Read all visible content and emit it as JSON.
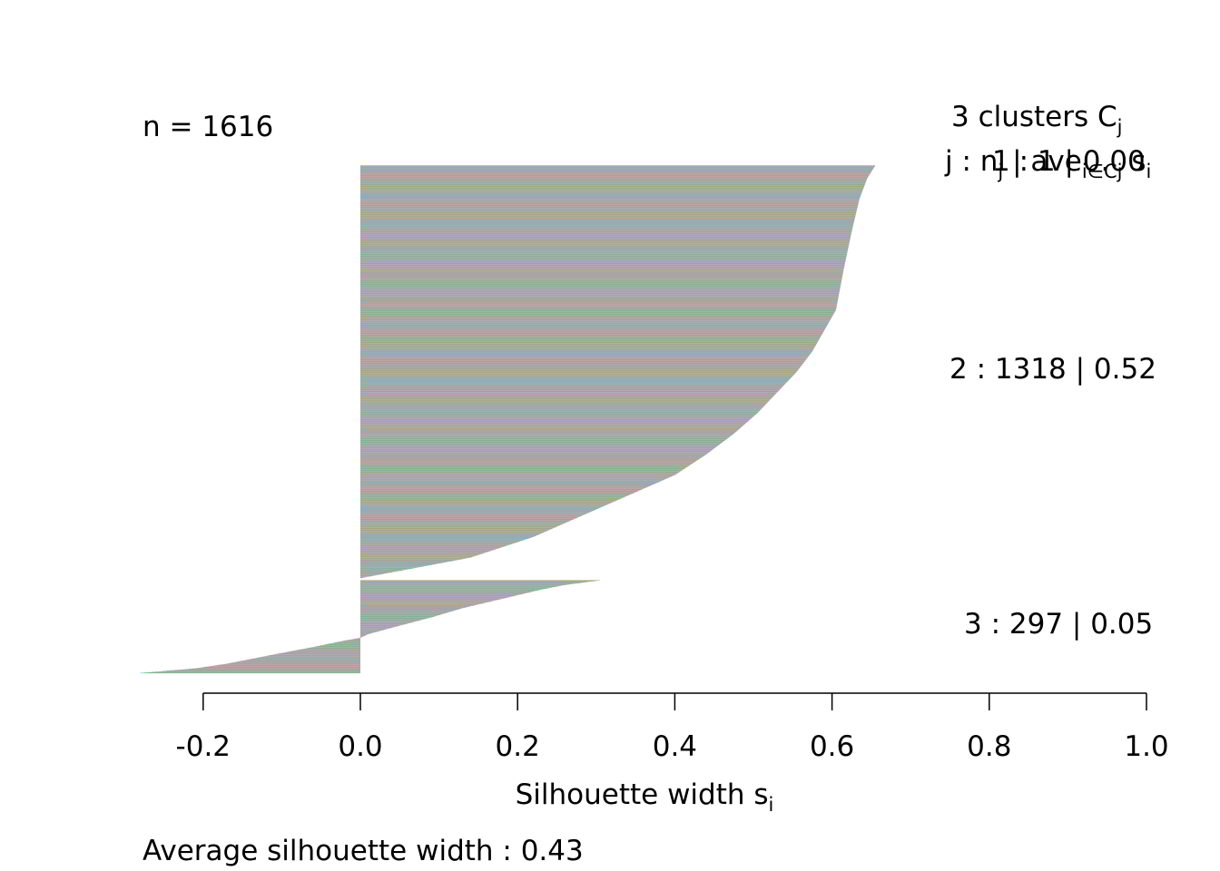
{
  "chart_data": {
    "type": "bar",
    "orientation": "horizontal",
    "plot_kind": "silhouette",
    "n_label": "n = 1616",
    "header_clusters": "3  clusters  C",
    "header_clusters_sub": "j",
    "header_row_j": "j :  n",
    "header_row_j_sub": "j",
    "header_row_ave": " |  ave",
    "header_row_ave_sub": "i∈Cj",
    "header_row_s": " s",
    "header_row_s_sub": "i",
    "xlabel": "Silhouette width s",
    "xlabel_sub": "i",
    "footer": "Average silhouette width :  0.43",
    "xlim": [
      -0.2,
      1.0
    ],
    "xticks": [
      {
        "value": -0.2,
        "label": "-0.2"
      },
      {
        "value": 0.0,
        "label": "0.0"
      },
      {
        "value": 0.2,
        "label": "0.2"
      },
      {
        "value": 0.4,
        "label": "0.4"
      },
      {
        "value": 0.6,
        "label": "0.6"
      },
      {
        "value": 0.8,
        "label": "0.8"
      },
      {
        "value": 1.0,
        "label": "1.0"
      }
    ],
    "clusters": [
      {
        "id": 1,
        "size": 1,
        "ave": 0.0,
        "label": "1 :   1  |  0.00",
        "profile": [
          [
            0,
            0.0
          ],
          [
            1,
            0.0
          ]
        ]
      },
      {
        "id": 2,
        "size": 1318,
        "ave": 0.52,
        "label": "2 :   1318  |  0.52",
        "profile": [
          [
            0,
            0.655
          ],
          [
            0.03,
            0.645
          ],
          [
            0.08,
            0.635
          ],
          [
            0.16,
            0.625
          ],
          [
            0.25,
            0.615
          ],
          [
            0.35,
            0.605
          ],
          [
            0.4,
            0.59
          ],
          [
            0.45,
            0.575
          ],
          [
            0.5,
            0.555
          ],
          [
            0.55,
            0.53
          ],
          [
            0.6,
            0.505
          ],
          [
            0.65,
            0.475
          ],
          [
            0.7,
            0.44
          ],
          [
            0.75,
            0.4
          ],
          [
            0.8,
            0.34
          ],
          [
            0.85,
            0.28
          ],
          [
            0.9,
            0.22
          ],
          [
            0.95,
            0.14
          ],
          [
            1.0,
            0.0
          ]
        ]
      },
      {
        "id": 3,
        "size": 297,
        "ave": 0.05,
        "label": "3 :   297  |  0.05",
        "profile": [
          [
            0,
            0.305
          ],
          [
            0.05,
            0.26
          ],
          [
            0.1,
            0.23
          ],
          [
            0.2,
            0.18
          ],
          [
            0.3,
            0.13
          ],
          [
            0.4,
            0.09
          ],
          [
            0.5,
            0.045
          ],
          [
            0.58,
            0.01
          ],
          [
            0.62,
            0.0
          ],
          [
            0.65,
            -0.02
          ],
          [
            0.72,
            -0.06
          ],
          [
            0.8,
            -0.11
          ],
          [
            0.85,
            -0.14
          ],
          [
            0.9,
            -0.17
          ],
          [
            0.95,
            -0.21
          ],
          [
            1.0,
            -0.28
          ]
        ]
      }
    ],
    "series_colors": [
      "#F8766D",
      "#7CAE00",
      "#00BFC4",
      "#C77CFF",
      "#E7A34D",
      "#619CFF"
    ]
  }
}
